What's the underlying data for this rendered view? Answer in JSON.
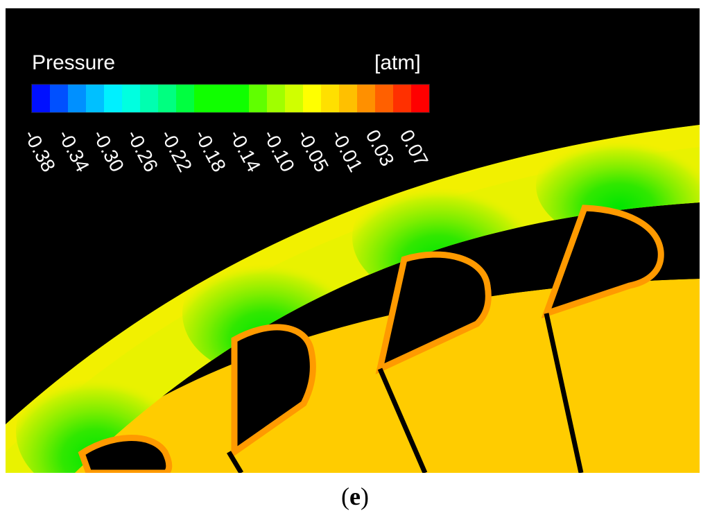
{
  "legend": {
    "title": "Pressure",
    "unit": "[atm]",
    "colors": [
      "#0010ff",
      "#0050ff",
      "#0090ff",
      "#00c0ff",
      "#00f0ff",
      "#00ffe0",
      "#00ffb0",
      "#00ff80",
      "#00ff40",
      "#10ff00",
      "#10ff00",
      "#10ff00",
      "#60ff00",
      "#a0ff00",
      "#d0ff00",
      "#ffff00",
      "#ffe000",
      "#ffc000",
      "#ff9000",
      "#ff6000",
      "#ff3000",
      "#ff0000"
    ],
    "ticks": [
      "-0.38",
      "-0.34",
      "-0.30",
      "-0.26",
      "-0.22",
      "-0.18",
      "-0.14",
      "-0.10",
      "-0.05",
      "-0.01",
      "0.03",
      "0.07"
    ]
  },
  "field_colors": {
    "background": "#000000",
    "hub": "#ffcc00",
    "flow_base": "#e9f200",
    "low_pressure": "#00e600",
    "mid_pressure": "#9af000",
    "blade_edge": "#ff9a00"
  },
  "caption": {
    "open": "(",
    "letter": "e",
    "close": ")"
  }
}
